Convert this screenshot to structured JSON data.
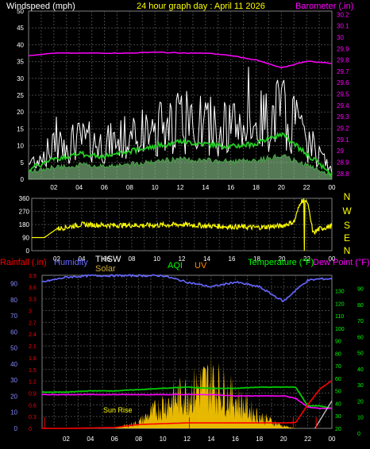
{
  "title": "24 hour graph day : April 11 2026",
  "wind_panel": {
    "left_label": "Windspeed (mph)",
    "right_label": "Barometer (.in)",
    "y_ticks": [
      "0",
      "5",
      "10",
      "15",
      "20",
      "25",
      "30",
      "35",
      "40",
      "45",
      "50"
    ],
    "baro_ticks": [
      "28.8",
      "28.9",
      "29",
      "29.1",
      "29.2",
      "29.3",
      "29.4",
      "29.5",
      "29.6",
      "29.7",
      "29.8",
      "29.9",
      "30",
      "30.1",
      "30.2"
    ],
    "x_ticks": [
      "02",
      "04",
      "06",
      "08",
      "10",
      "12",
      "14",
      "16",
      "18",
      "20",
      "22",
      "00"
    ]
  },
  "dir_panel": {
    "y_ticks": [
      "0",
      "90",
      "180",
      "270",
      "360"
    ],
    "compass": [
      "N",
      "W",
      "S",
      "E",
      "N"
    ],
    "x_ticks": [
      "02",
      "04",
      "06",
      "08",
      "10",
      "12",
      "14",
      "16",
      "18",
      "20",
      "22",
      "00"
    ]
  },
  "bottom_panel": {
    "labels": {
      "rainfall": "Rainfall (.in)",
      "humidity": "Humidity",
      "thsw": "THSW",
      "solar": "Solar",
      "aqi": "AQI",
      "uv": "UV",
      "temperature": "Temperature (°F)",
      "dew_point": "Dew Point (°F)"
    },
    "rain_ticks": [
      "0",
      "0.3",
      "0.6",
      "0.9",
      "1.2",
      "1.5",
      "1.8",
      "2.1",
      "2.4",
      "2.7",
      "3",
      "3.3",
      "3.6",
      "3.9"
    ],
    "humidity_ticks": [
      "0",
      "10",
      "20",
      "30",
      "40",
      "50",
      "60",
      "70",
      "80",
      "90"
    ],
    "temp_ticks": [
      "20",
      "30",
      "40",
      "50",
      "60",
      "70",
      "80",
      "90",
      "100",
      "110",
      "120",
      "130"
    ],
    "temp_ticks_right": [
      "0",
      "10",
      "20",
      "30",
      "40",
      "50",
      "60",
      "70",
      "80",
      "90"
    ],
    "x_ticks": [
      "02",
      "04",
      "06",
      "08",
      "10",
      "12",
      "14",
      "16",
      "18",
      "20",
      "22",
      "00"
    ],
    "annotation": "Sun Rise"
  },
  "colors": {
    "wind": "#ffffff",
    "wind_avg": "#22cc22",
    "barometer": "#ff00ff",
    "direction": "#ffff00",
    "humidity": "#6666ff",
    "temperature": "#00cc00",
    "dew_point": "#ff00ff",
    "rain": "#ff0000",
    "solar": "#ffcc00",
    "thsw": "#ffffff",
    "aqi": "#00ff00",
    "uv": "#ff8800"
  },
  "chart_data": [
    {
      "type": "line",
      "title": "24 hour graph day : April 11 2026",
      "xlabel": "",
      "ylabel": "Windspeed (mph)",
      "x": [
        0,
        2,
        4,
        6,
        8,
        10,
        12,
        14,
        16,
        18,
        20,
        22,
        24
      ],
      "x_tick_labels": [
        "",
        "02",
        "04",
        "06",
        "08",
        "10",
        "12",
        "14",
        "16",
        "18",
        "20",
        "22",
        "00"
      ],
      "ylim": [
        0,
        50
      ],
      "grid": true,
      "series": [
        {
          "name": "Windspeed (mph)",
          "values": [
            4,
            8,
            10,
            9,
            11,
            13,
            15,
            14,
            13,
            14,
            18,
            10,
            2
          ]
        },
        {
          "name": "Barometer (.in)",
          "axis": "right",
          "ylim": [
            28.8,
            30.2
          ],
          "values": [
            29.84,
            29.86,
            29.86,
            29.86,
            29.86,
            29.87,
            29.86,
            29.86,
            29.84,
            29.8,
            29.73,
            29.79,
            29.77
          ]
        }
      ]
    },
    {
      "type": "line",
      "xlabel": "",
      "ylabel": "",
      "x": [
        0,
        1,
        2,
        4,
        6,
        8,
        10,
        12,
        14,
        16,
        18,
        20,
        21,
        21.5,
        22,
        22.5,
        23,
        24
      ],
      "ylim": [
        0,
        360
      ],
      "series": [
        {
          "values": [
            90,
            90,
            150,
            180,
            175,
            175,
            175,
            180,
            170,
            165,
            160,
            170,
            200,
            340,
            350,
            120,
            150,
            170
          ]
        }
      ]
    },
    {
      "type": "line",
      "xlabel": "",
      "ylabel": "",
      "x": [
        0,
        2,
        4,
        6,
        8,
        10,
        12,
        14,
        16,
        18,
        20,
        21,
        22,
        23,
        24
      ],
      "series": [
        {
          "name": "Humidity",
          "axis": "left",
          "ylim": [
            0,
            100
          ],
          "values": [
            91,
            94,
            95,
            95,
            95,
            95,
            91,
            88,
            91,
            88,
            79,
            86,
            92,
            93,
            93
          ]
        },
        {
          "name": "Temperature (°F)",
          "axis": "right",
          "ylim": [
            20,
            140
          ],
          "values": [
            49,
            49,
            50,
            50,
            51,
            52,
            53,
            52,
            52,
            53,
            53,
            53,
            38,
            38,
            36
          ]
        },
        {
          "name": "Dew Point (°F)",
          "axis": "right",
          "ylim": [
            20,
            140
          ],
          "values": [
            47,
            47,
            47,
            47,
            47,
            47,
            47,
            47,
            46,
            46,
            46,
            44,
            37,
            36,
            36
          ]
        },
        {
          "name": "Rainfall (.in)",
          "axis": "left",
          "ylim": [
            0,
            3.9
          ],
          "values": [
            0,
            0,
            0.01,
            0.02,
            0.1,
            0.12,
            0.14,
            0.14,
            0.14,
            0.14,
            0.14,
            0.15,
            0.6,
            1.0,
            1.22
          ]
        },
        {
          "name": "Solar",
          "ylim": [
            0,
            100
          ],
          "values": [
            0,
            0,
            0,
            0,
            5,
            20,
            30,
            40,
            25,
            10,
            2,
            0,
            0,
            0,
            0
          ]
        }
      ]
    }
  ]
}
